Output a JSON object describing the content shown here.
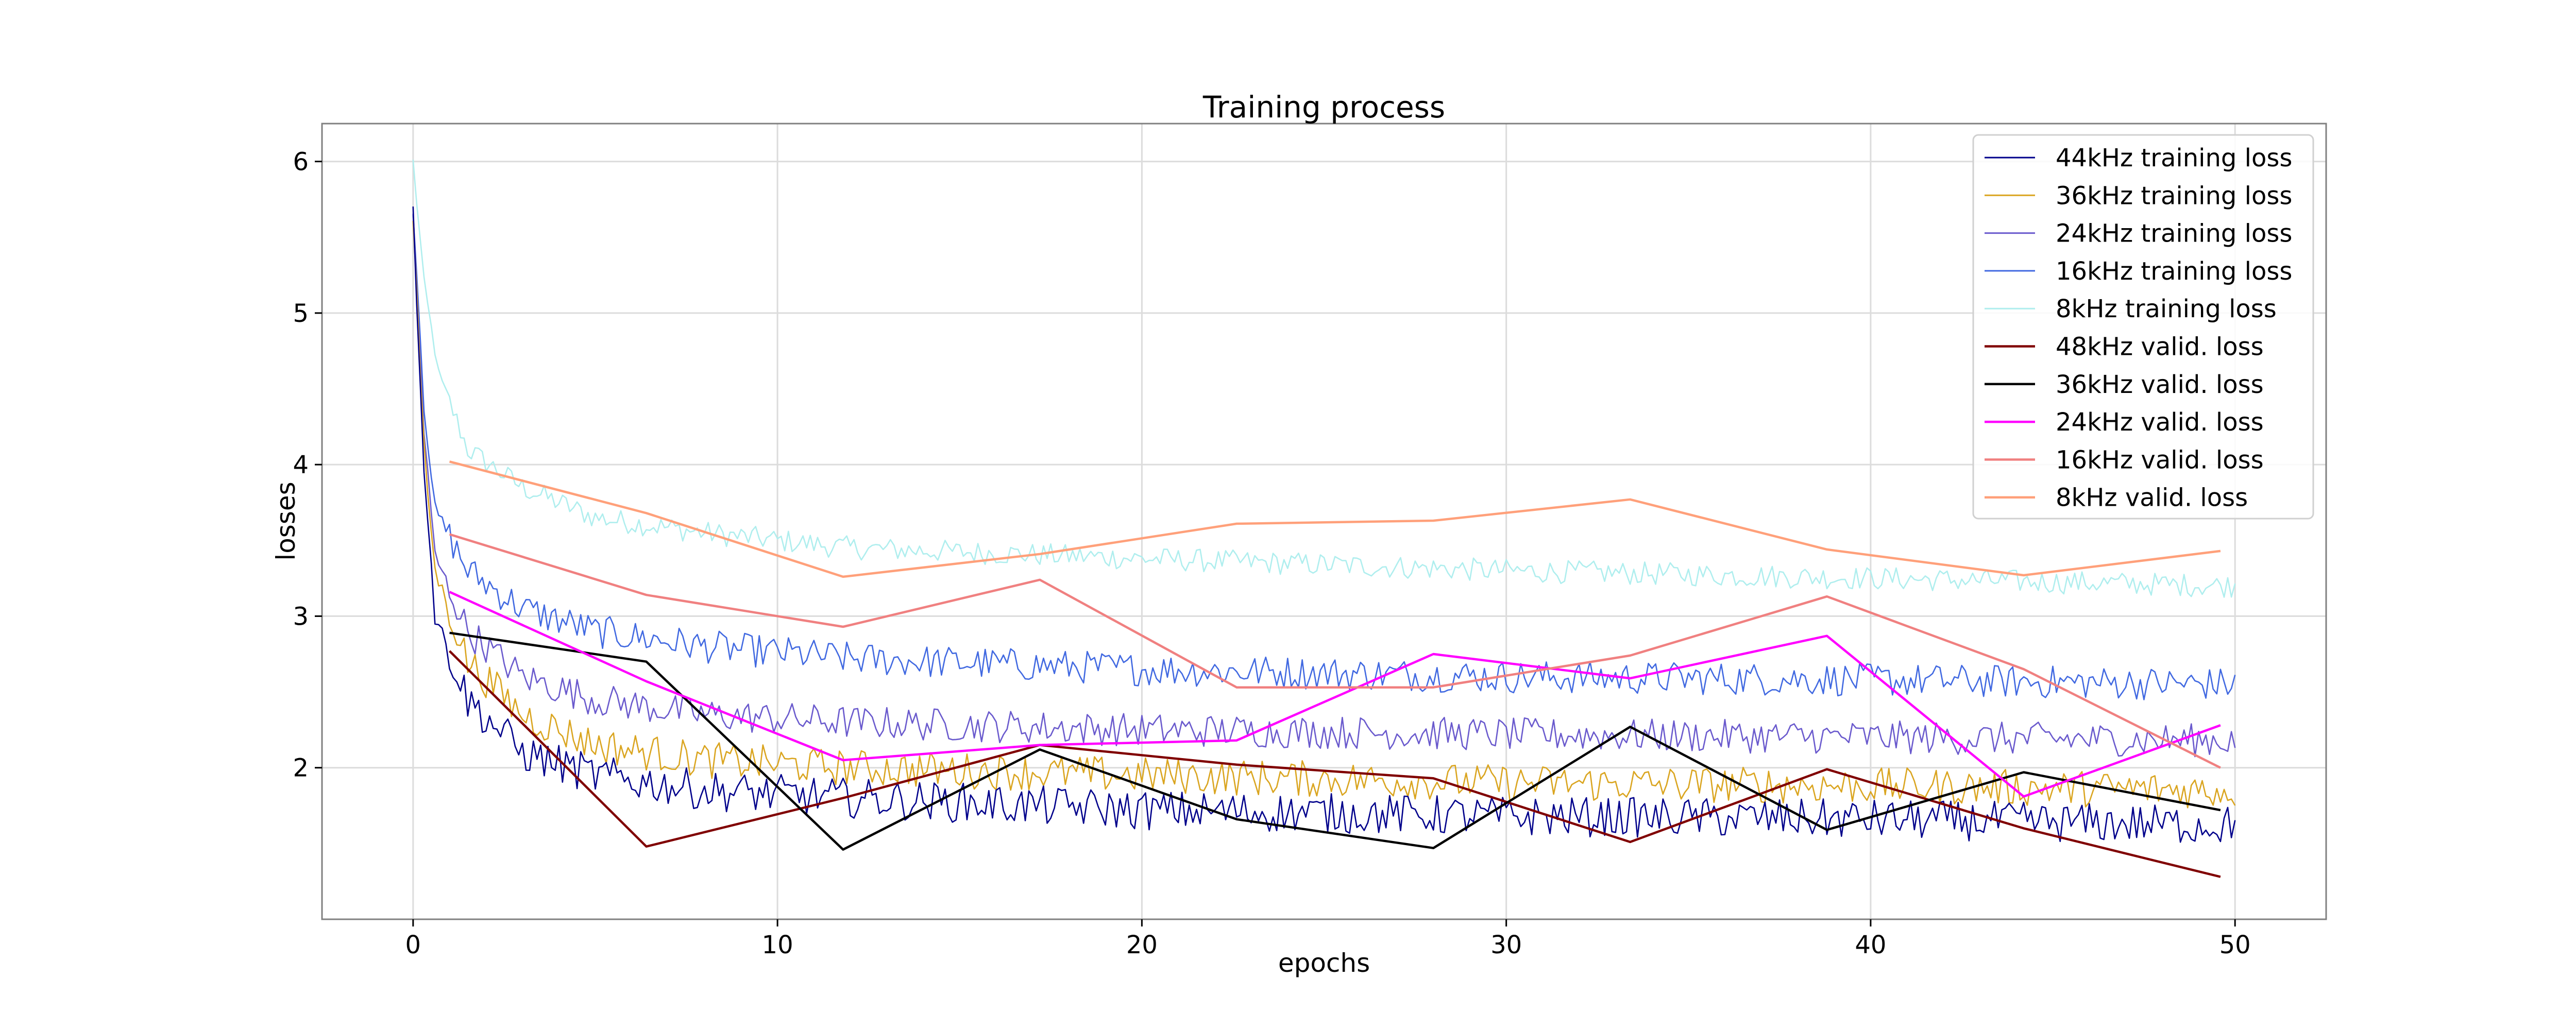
{
  "chart_data": {
    "type": "line",
    "title": "Training process",
    "xlabel": "epochs",
    "ylabel": "losses",
    "xlim": [
      -2.5,
      52.5
    ],
    "ylim": [
      1.0,
      6.25
    ],
    "xticks": [
      0,
      10,
      20,
      30,
      40,
      50
    ],
    "yticks": [
      2,
      3,
      4,
      5,
      6
    ],
    "grid": true,
    "legend_position": "top-right",
    "training_points_per_epoch": 10,
    "series": [
      {
        "name": "44kHz training loss",
        "color": "#00008b",
        "kind": "training",
        "anchors": [
          [
            0,
            5.65
          ],
          [
            0.3,
            4.0
          ],
          [
            0.6,
            3.0
          ],
          [
            1.5,
            2.45
          ],
          [
            3,
            2.1
          ],
          [
            5,
            1.95
          ],
          [
            8,
            1.85
          ],
          [
            12,
            1.8
          ],
          [
            20,
            1.72
          ],
          [
            30,
            1.68
          ],
          [
            40,
            1.66
          ],
          [
            50,
            1.62
          ]
        ],
        "noise": 0.12
      },
      {
        "name": "36kHz training loss",
        "color": "#daa520",
        "kind": "training",
        "anchors": [
          [
            0,
            5.6
          ],
          [
            0.3,
            4.1
          ],
          [
            0.6,
            3.3
          ],
          [
            1.5,
            2.7
          ],
          [
            3,
            2.35
          ],
          [
            5,
            2.15
          ],
          [
            8,
            2.05
          ],
          [
            12,
            2.0
          ],
          [
            20,
            1.95
          ],
          [
            30,
            1.9
          ],
          [
            40,
            1.88
          ],
          [
            50,
            1.85
          ]
        ],
        "noise": 0.11
      },
      {
        "name": "24kHz training loss",
        "color": "#6a5acd",
        "kind": "training",
        "anchors": [
          [
            0,
            5.65
          ],
          [
            0.3,
            4.2
          ],
          [
            0.6,
            3.4
          ],
          [
            1.5,
            2.9
          ],
          [
            3,
            2.6
          ],
          [
            5,
            2.45
          ],
          [
            8,
            2.35
          ],
          [
            12,
            2.3
          ],
          [
            20,
            2.25
          ],
          [
            30,
            2.22
          ],
          [
            40,
            2.2
          ],
          [
            50,
            2.18
          ]
        ],
        "noise": 0.1
      },
      {
        "name": "16kHz training loss",
        "color": "#4169e1",
        "kind": "training",
        "anchors": [
          [
            0,
            5.7
          ],
          [
            0.3,
            4.4
          ],
          [
            0.6,
            3.7
          ],
          [
            1.5,
            3.3
          ],
          [
            3,
            3.05
          ],
          [
            5,
            2.9
          ],
          [
            8,
            2.8
          ],
          [
            12,
            2.72
          ],
          [
            20,
            2.65
          ],
          [
            30,
            2.6
          ],
          [
            40,
            2.58
          ],
          [
            50,
            2.55
          ]
        ],
        "noise": 0.1
      },
      {
        "name": "8kHz training loss",
        "color": "#afeeee",
        "kind": "training",
        "anchors": [
          [
            0,
            6.0
          ],
          [
            0.3,
            5.2
          ],
          [
            0.7,
            4.6
          ],
          [
            1.5,
            4.1
          ],
          [
            3,
            3.85
          ],
          [
            5,
            3.65
          ],
          [
            8,
            3.55
          ],
          [
            12,
            3.45
          ],
          [
            20,
            3.38
          ],
          [
            30,
            3.3
          ],
          [
            40,
            3.25
          ],
          [
            50,
            3.2
          ]
        ],
        "noise": 0.07
      },
      {
        "name": "48kHz valid. loss",
        "color": "#800000",
        "kind": "valid",
        "x": [
          1,
          6.4,
          11.8,
          17.2,
          22.6,
          28,
          33.4,
          38.8,
          44.2,
          49.6
        ],
        "values": [
          2.77,
          1.48,
          1.8,
          2.15,
          2.02,
          1.93,
          1.51,
          1.99,
          1.6,
          1.28
        ]
      },
      {
        "name": "36kHz valid. loss",
        "color": "#000000",
        "kind": "valid",
        "x": [
          1,
          6.4,
          11.8,
          17.2,
          22.6,
          28,
          33.4,
          38.8,
          44.2,
          49.6
        ],
        "values": [
          2.89,
          2.7,
          1.46,
          2.12,
          1.66,
          1.47,
          2.27,
          1.59,
          1.97,
          1.72
        ]
      },
      {
        "name": "24kHz valid. loss",
        "color": "#ff00ff",
        "kind": "valid",
        "x": [
          1,
          6.4,
          11.8,
          17.2,
          22.6,
          28,
          33.4,
          38.8,
          44.2,
          49.6
        ],
        "values": [
          3.16,
          2.57,
          2.05,
          2.15,
          2.18,
          2.75,
          2.59,
          2.87,
          1.81,
          2.28
        ]
      },
      {
        "name": "16kHz valid. loss",
        "color": "#f08080",
        "kind": "valid",
        "x": [
          1,
          6.4,
          11.8,
          17.2,
          22.6,
          28,
          33.4,
          38.8,
          44.2,
          49.6
        ],
        "values": [
          3.54,
          3.14,
          2.93,
          3.24,
          2.53,
          2.53,
          2.74,
          3.13,
          2.65,
          2.0
        ]
      },
      {
        "name": "8kHz valid. loss",
        "color": "#ffa07a",
        "kind": "valid",
        "x": [
          1,
          6.4,
          11.8,
          17.2,
          22.6,
          28,
          33.4,
          38.8,
          44.2,
          49.6
        ],
        "values": [
          4.02,
          3.68,
          3.26,
          3.41,
          3.61,
          3.63,
          3.77,
          3.44,
          3.27,
          3.43
        ]
      }
    ]
  }
}
